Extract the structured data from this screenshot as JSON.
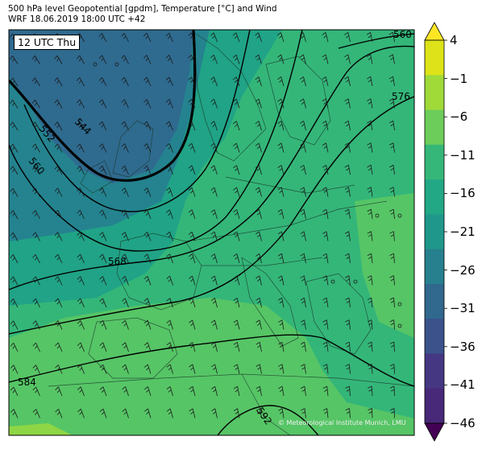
{
  "header": {
    "line1": "500 hPa level Geopotential [gpdm], Temperature [°C] and Wind",
    "line2": "WRF 18.06.2019 18:00 UTC +42"
  },
  "map": {
    "time_label": "12 UTC Thu",
    "copyright": "© Meteorological Institute Munich, LMU",
    "contour_labels": [
      "544",
      "552",
      "560",
      "568",
      "576",
      "584",
      "592",
      "560"
    ]
  },
  "colorbar": {
    "levels": [
      "4",
      "−1",
      "−6",
      "−11",
      "−16",
      "−21",
      "−26",
      "−31",
      "−36",
      "−41",
      "−46"
    ],
    "colors": [
      "#fde725",
      "#dde318",
      "#a0da39",
      "#6ccd5a",
      "#35b779",
      "#22a884",
      "#1f988b",
      "#27808e",
      "#31688e",
      "#3b528b",
      "#453781",
      "#482878",
      "#440154"
    ]
  },
  "fill_colors": {
    "cold_core": "#2f6a8f",
    "cold": "#24838f",
    "mid": "#20a386",
    "warm": "#34b679",
    "warmer": "#56c566",
    "warmest": "#8ed645"
  }
}
